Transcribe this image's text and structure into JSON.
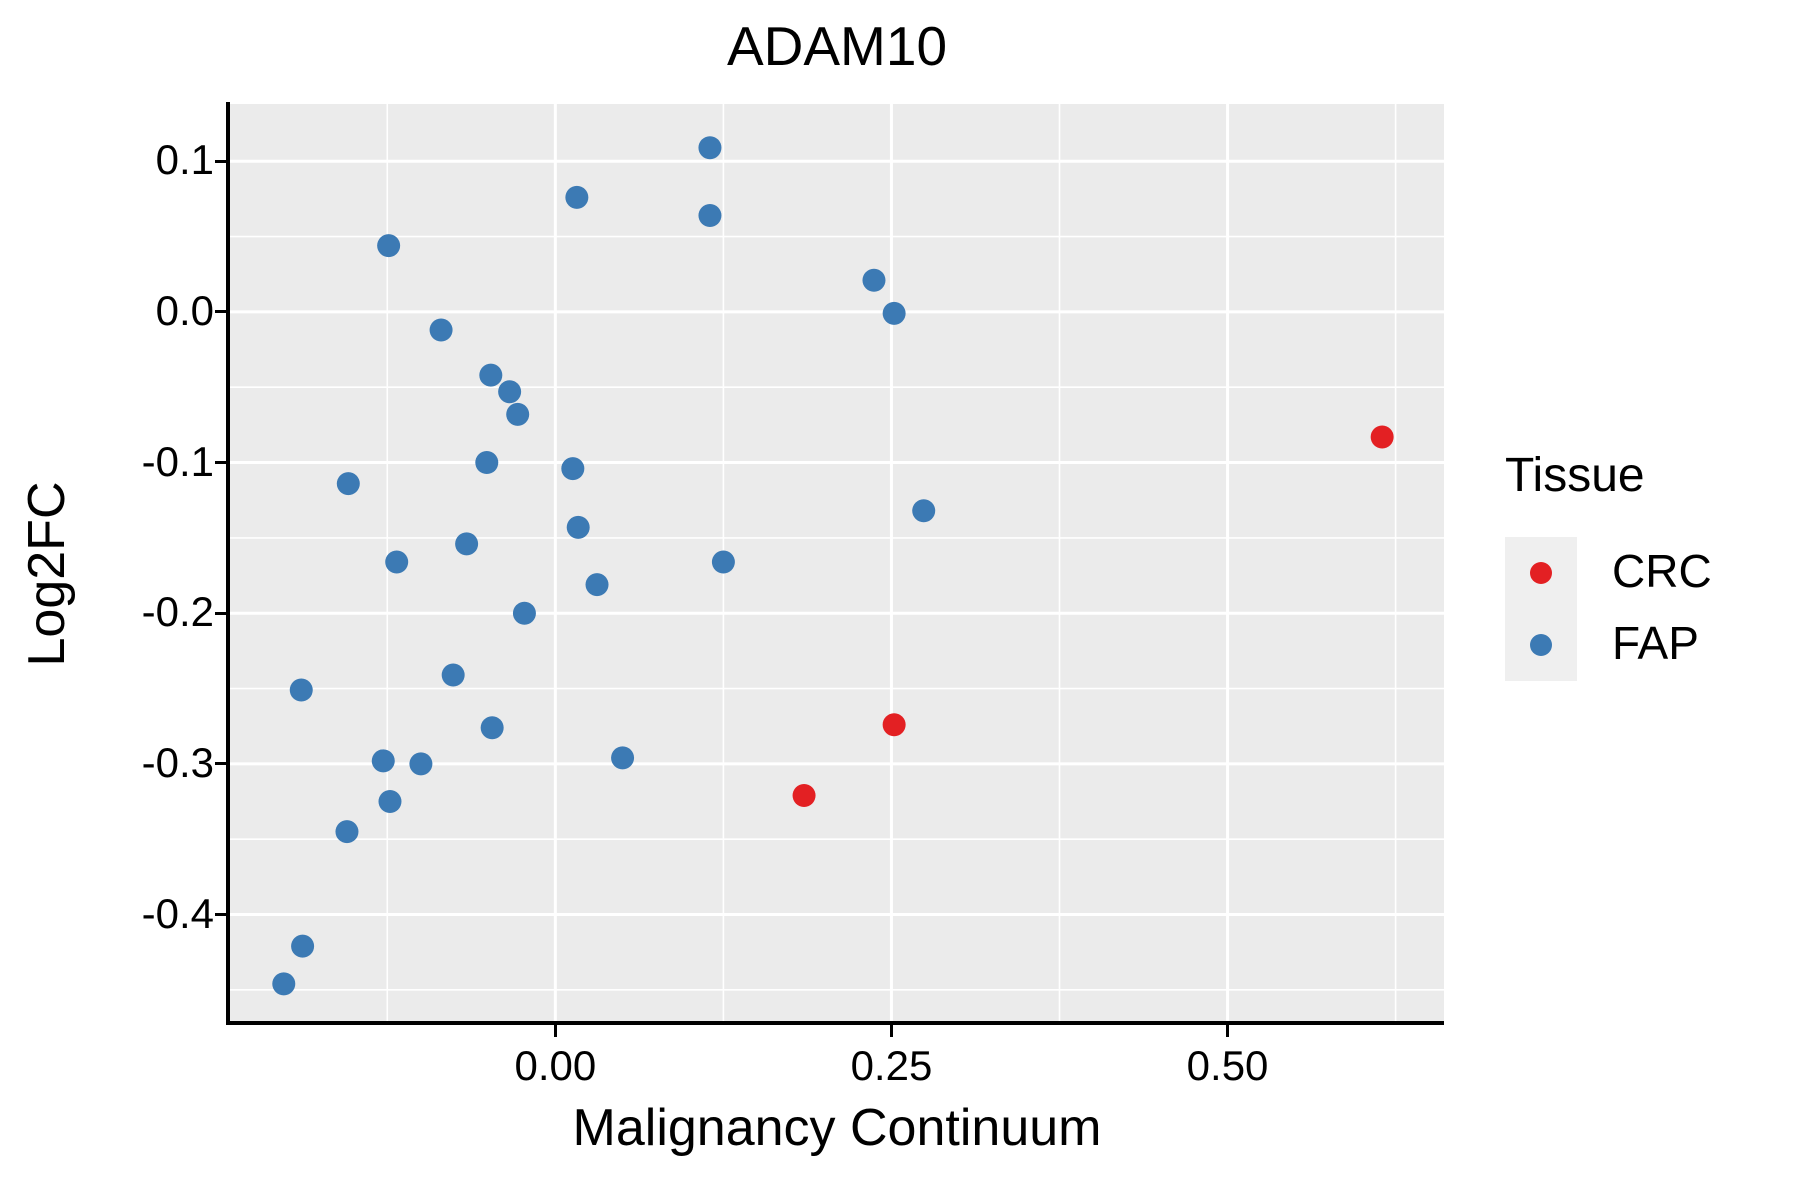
{
  "title": "ADAM10",
  "chart_data": {
    "type": "scatter",
    "title": "ADAM10",
    "xlabel": "Malignancy Continuum",
    "ylabel": "Log2FC",
    "xlim": [
      -0.242,
      0.661
    ],
    "ylim": [
      -0.472,
      0.138
    ],
    "grid": true,
    "panel_color": "#EBEBEB",
    "gridline_color": "#FFFFFF",
    "x_ticks": [
      {
        "value": 0.0,
        "label": "0.00"
      },
      {
        "value": 0.25,
        "label": "0.25"
      },
      {
        "value": 0.5,
        "label": "0.50"
      }
    ],
    "y_ticks": [
      {
        "value": 0.1,
        "label": "0.1"
      },
      {
        "value": 0.0,
        "label": "0.0"
      },
      {
        "value": -0.1,
        "label": "-0.1"
      },
      {
        "value": -0.2,
        "label": "-0.2"
      },
      {
        "value": -0.3,
        "label": "-0.3"
      },
      {
        "value": -0.4,
        "label": "-0.4"
      }
    ],
    "x_minor_gridlines": [
      -0.125,
      0.125,
      0.375,
      0.625
    ],
    "y_minor_gridlines": [
      0.05,
      -0.05,
      -0.15,
      -0.25,
      -0.35,
      -0.45
    ],
    "marker_diameter_px": 23,
    "legend": {
      "title": "Tissue",
      "position": "right",
      "entries": [
        {
          "name": "CRC",
          "color": "#E32023"
        },
        {
          "name": "FAP",
          "color": "#3C7AB4"
        }
      ]
    },
    "series": [
      {
        "name": "FAP",
        "color": "#3C7AB4",
        "points": [
          [
            0.115,
            0.109
          ],
          [
            0.016,
            0.076
          ],
          [
            0.115,
            0.064
          ],
          [
            -0.124,
            0.044
          ],
          [
            0.237,
            0.021
          ],
          [
            0.252,
            -0.001
          ],
          [
            -0.085,
            -0.012
          ],
          [
            -0.048,
            -0.042
          ],
          [
            -0.034,
            -0.053
          ],
          [
            -0.028,
            -0.068
          ],
          [
            -0.051,
            -0.1
          ],
          [
            -0.154,
            -0.114
          ],
          [
            0.013,
            -0.104
          ],
          [
            0.017,
            -0.143
          ],
          [
            -0.066,
            -0.154
          ],
          [
            0.274,
            -0.132
          ],
          [
            -0.118,
            -0.166
          ],
          [
            0.125,
            -0.166
          ],
          [
            0.031,
            -0.181
          ],
          [
            -0.023,
            -0.2
          ],
          [
            -0.189,
            -0.251
          ],
          [
            -0.076,
            -0.241
          ],
          [
            -0.047,
            -0.276
          ],
          [
            -0.128,
            -0.298
          ],
          [
            -0.1,
            -0.3
          ],
          [
            -0.123,
            -0.325
          ],
          [
            0.05,
            -0.296
          ],
          [
            -0.155,
            -0.345
          ],
          [
            -0.188,
            -0.421
          ],
          [
            -0.202,
            -0.446
          ]
        ]
      },
      {
        "name": "CRC",
        "color": "#E32023",
        "points": [
          [
            0.615,
            -0.083
          ],
          [
            0.252,
            -0.274
          ],
          [
            0.185,
            -0.321
          ]
        ]
      }
    ]
  }
}
